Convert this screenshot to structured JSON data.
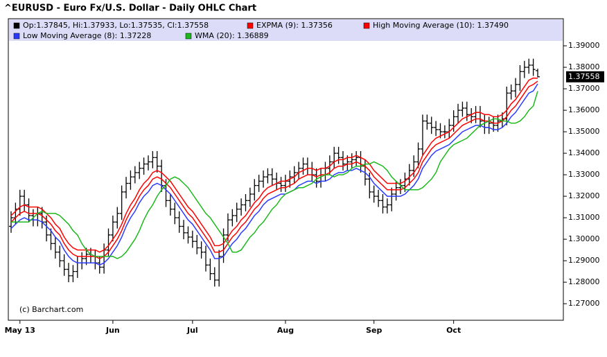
{
  "chart_data": {
    "type": "ohlc",
    "title": "^EURUSD - Euro Fx/U.S. Dollar - Daily OHLC Chart",
    "source": "(c) Barchart.com",
    "categories": [
      null,
      null,
      "May 13",
      null,
      null,
      null,
      null,
      null,
      null,
      null,
      null,
      null,
      null,
      null,
      null,
      null,
      null,
      null,
      null,
      null,
      null,
      null,
      null,
      "Jun",
      null,
      null,
      null,
      null,
      null,
      null,
      null,
      null,
      null,
      null,
      null,
      null,
      null,
      null,
      null,
      null,
      null,
      "Jul",
      null,
      null,
      null,
      null,
      null,
      null,
      null,
      null,
      null,
      null,
      null,
      null,
      null,
      null,
      null,
      null,
      null,
      null,
      null,
      null,
      "Aug",
      null,
      null,
      null,
      null,
      null,
      null,
      null,
      null,
      null,
      null,
      null,
      null,
      null,
      null,
      null,
      null,
      null,
      null,
      null,
      "Sep",
      null,
      null,
      null,
      null,
      null,
      null,
      null,
      null,
      null,
      null,
      null,
      null,
      null,
      null,
      null,
      null,
      null,
      "Oct",
      null,
      null,
      null,
      null,
      null,
      null,
      null,
      null,
      null,
      null,
      null,
      null,
      null,
      null,
      null,
      null,
      null,
      null,
      null
    ],
    "ohlc": {
      "name": "Op:1.37845, Hi:1.37933, Lo:1.37535, Cl:1.37558",
      "color": "#000000",
      "open": [
        1.306,
        1.31,
        1.314,
        1.32,
        1.316,
        1.311,
        1.309,
        1.312,
        1.308,
        1.302,
        1.298,
        1.294,
        1.29,
        1.286,
        1.283,
        1.285,
        1.289,
        1.291,
        1.293,
        1.292,
        1.289,
        1.287,
        1.295,
        1.302,
        1.308,
        1.312,
        1.322,
        1.326,
        1.329,
        1.331,
        1.333,
        1.335,
        1.336,
        1.338,
        1.334,
        1.325,
        1.318,
        1.314,
        1.31,
        1.306,
        1.303,
        1.301,
        1.299,
        1.296,
        1.294,
        1.288,
        1.284,
        1.281,
        1.292,
        1.302,
        1.309,
        1.311,
        1.314,
        1.316,
        1.318,
        1.321,
        1.325,
        1.327,
        1.329,
        1.33,
        1.328,
        1.326,
        1.325,
        1.327,
        1.329,
        1.331,
        1.333,
        1.335,
        1.333,
        1.33,
        1.327,
        1.33,
        1.333,
        1.336,
        1.34,
        1.338,
        1.335,
        1.336,
        1.337,
        1.338,
        1.334,
        1.328,
        1.322,
        1.32,
        1.318,
        1.315,
        1.316,
        1.321,
        1.324,
        1.325,
        1.328,
        1.332,
        1.336,
        1.342,
        1.355,
        1.354,
        1.352,
        1.351,
        1.35,
        1.35,
        1.353,
        1.357,
        1.36,
        1.361,
        1.358,
        1.357,
        1.359,
        1.355,
        1.352,
        1.354,
        1.353,
        1.355,
        1.356,
        1.368,
        1.369,
        1.372,
        1.378,
        1.38,
        1.381,
        1.37845
      ],
      "high": [
        1.313,
        1.317,
        1.323,
        1.323,
        1.319,
        1.314,
        1.315,
        1.315,
        1.311,
        1.305,
        1.301,
        1.297,
        1.293,
        1.289,
        1.288,
        1.292,
        1.294,
        1.296,
        1.296,
        1.295,
        1.292,
        1.298,
        1.305,
        1.311,
        1.315,
        1.325,
        1.329,
        1.332,
        1.334,
        1.336,
        1.338,
        1.339,
        1.341,
        1.341,
        1.337,
        1.328,
        1.321,
        1.317,
        1.313,
        1.309,
        1.306,
        1.304,
        1.302,
        1.299,
        1.297,
        1.291,
        1.287,
        1.295,
        1.305,
        1.312,
        1.314,
        1.317,
        1.319,
        1.321,
        1.324,
        1.328,
        1.33,
        1.332,
        1.333,
        1.333,
        1.331,
        1.329,
        1.33,
        1.332,
        1.334,
        1.336,
        1.338,
        1.338,
        1.336,
        1.333,
        1.333,
        1.336,
        1.339,
        1.343,
        1.343,
        1.341,
        1.339,
        1.34,
        1.341,
        1.341,
        1.337,
        1.331,
        1.325,
        1.323,
        1.321,
        1.319,
        1.324,
        1.327,
        1.328,
        1.331,
        1.335,
        1.339,
        1.345,
        1.358,
        1.358,
        1.357,
        1.355,
        1.354,
        1.353,
        1.356,
        1.36,
        1.363,
        1.364,
        1.364,
        1.361,
        1.362,
        1.362,
        1.358,
        1.357,
        1.357,
        1.358,
        1.359,
        1.371,
        1.372,
        1.375,
        1.381,
        1.383,
        1.384,
        1.384,
        1.37933
      ],
      "low": [
        1.303,
        1.307,
        1.311,
        1.313,
        1.308,
        1.306,
        1.306,
        1.305,
        1.299,
        1.295,
        1.291,
        1.287,
        1.283,
        1.28,
        1.28,
        1.282,
        1.286,
        1.288,
        1.289,
        1.286,
        1.284,
        1.284,
        1.292,
        1.299,
        1.305,
        1.309,
        1.319,
        1.323,
        1.326,
        1.328,
        1.33,
        1.332,
        1.333,
        1.331,
        1.322,
        1.315,
        1.311,
        1.307,
        1.303,
        1.3,
        1.298,
        1.296,
        1.293,
        1.291,
        1.285,
        1.281,
        1.278,
        1.278,
        1.289,
        1.299,
        1.306,
        1.308,
        1.311,
        1.313,
        1.315,
        1.318,
        1.322,
        1.324,
        1.326,
        1.325,
        1.323,
        1.322,
        1.322,
        1.324,
        1.326,
        1.328,
        1.33,
        1.33,
        1.327,
        1.324,
        1.324,
        1.327,
        1.33,
        1.333,
        1.335,
        1.332,
        1.332,
        1.333,
        1.334,
        1.331,
        1.325,
        1.319,
        1.317,
        1.315,
        1.312,
        1.312,
        1.313,
        1.318,
        1.321,
        1.322,
        1.325,
        1.329,
        1.333,
        1.339,
        1.351,
        1.349,
        1.348,
        1.347,
        1.347,
        1.347,
        1.35,
        1.354,
        1.357,
        1.355,
        1.354,
        1.354,
        1.352,
        1.349,
        1.349,
        1.35,
        1.35,
        1.352,
        1.353,
        1.365,
        1.366,
        1.369,
        1.375,
        1.377,
        1.376,
        1.37535
      ],
      "close": [
        1.31,
        1.314,
        1.32,
        1.316,
        1.311,
        1.309,
        1.312,
        1.308,
        1.302,
        1.298,
        1.294,
        1.29,
        1.286,
        1.283,
        1.285,
        1.289,
        1.291,
        1.293,
        1.292,
        1.289,
        1.287,
        1.295,
        1.302,
        1.308,
        1.312,
        1.322,
        1.326,
        1.329,
        1.331,
        1.333,
        1.335,
        1.336,
        1.338,
        1.334,
        1.325,
        1.318,
        1.314,
        1.31,
        1.306,
        1.303,
        1.301,
        1.299,
        1.296,
        1.294,
        1.288,
        1.284,
        1.281,
        1.292,
        1.302,
        1.309,
        1.311,
        1.314,
        1.316,
        1.318,
        1.321,
        1.325,
        1.327,
        1.329,
        1.33,
        1.328,
        1.326,
        1.325,
        1.327,
        1.329,
        1.331,
        1.333,
        1.335,
        1.333,
        1.33,
        1.327,
        1.33,
        1.333,
        1.336,
        1.34,
        1.338,
        1.335,
        1.336,
        1.337,
        1.338,
        1.334,
        1.328,
        1.322,
        1.32,
        1.318,
        1.315,
        1.316,
        1.321,
        1.324,
        1.325,
        1.328,
        1.332,
        1.336,
        1.342,
        1.355,
        1.354,
        1.352,
        1.351,
        1.35,
        1.35,
        1.353,
        1.357,
        1.36,
        1.361,
        1.358,
        1.357,
        1.359,
        1.355,
        1.352,
        1.354,
        1.353,
        1.355,
        1.356,
        1.368,
        1.369,
        1.372,
        1.378,
        1.38,
        1.381,
        1.379,
        1.37558
      ]
    },
    "series": [
      {
        "name": "EXPMA (9): 1.37356",
        "color": "#ff0000",
        "values": [
          1.308,
          1.31,
          1.312,
          1.313,
          1.312,
          1.312,
          1.312,
          1.311,
          1.309,
          1.307,
          1.304,
          1.302,
          1.298,
          1.295,
          1.293,
          1.292,
          1.292,
          1.292,
          1.292,
          1.292,
          1.291,
          1.292,
          1.294,
          1.297,
          1.3,
          1.304,
          1.309,
          1.313,
          1.316,
          1.32,
          1.323,
          1.325,
          1.328,
          1.329,
          1.328,
          1.326,
          1.324,
          1.321,
          1.318,
          1.315,
          1.312,
          1.31,
          1.307,
          1.304,
          1.301,
          1.298,
          1.294,
          1.294,
          1.295,
          1.298,
          1.301,
          1.303,
          1.306,
          1.308,
          1.311,
          1.314,
          1.316,
          1.319,
          1.321,
          1.322,
          1.323,
          1.324,
          1.324,
          1.325,
          1.326,
          1.328,
          1.329,
          1.33,
          1.33,
          1.329,
          1.33,
          1.33,
          1.331,
          1.333,
          1.334,
          1.334,
          1.335,
          1.335,
          1.336,
          1.335,
          1.334,
          1.332,
          1.329,
          1.327,
          1.325,
          1.323,
          1.323,
          1.323,
          1.323,
          1.324,
          1.326,
          1.328,
          1.331,
          1.336,
          1.339,
          1.342,
          1.344,
          1.345,
          1.346,
          1.347,
          1.349,
          1.351,
          1.353,
          1.354,
          1.355,
          1.356,
          1.356,
          1.355,
          1.355,
          1.354,
          1.354,
          1.355,
          1.357,
          1.36,
          1.362,
          1.365,
          1.368,
          1.371,
          1.372,
          1.37356
        ]
      },
      {
        "name": "High Moving Average (10): 1.37490",
        "color": "#ff0000",
        "values": [
          1.311,
          1.313,
          1.315,
          1.316,
          1.315,
          1.315,
          1.315,
          1.314,
          1.312,
          1.31,
          1.307,
          1.305,
          1.301,
          1.298,
          1.296,
          1.295,
          1.295,
          1.295,
          1.295,
          1.295,
          1.294,
          1.295,
          1.297,
          1.3,
          1.303,
          1.307,
          1.312,
          1.316,
          1.319,
          1.323,
          1.326,
          1.328,
          1.331,
          1.332,
          1.331,
          1.329,
          1.327,
          1.324,
          1.321,
          1.318,
          1.315,
          1.313,
          1.31,
          1.307,
          1.304,
          1.301,
          1.297,
          1.297,
          1.298,
          1.301,
          1.304,
          1.306,
          1.309,
          1.311,
          1.314,
          1.317,
          1.319,
          1.322,
          1.324,
          1.325,
          1.326,
          1.327,
          1.327,
          1.328,
          1.329,
          1.331,
          1.332,
          1.333,
          1.333,
          1.332,
          1.333,
          1.333,
          1.334,
          1.336,
          1.337,
          1.337,
          1.338,
          1.338,
          1.339,
          1.338,
          1.337,
          1.335,
          1.332,
          1.33,
          1.328,
          1.326,
          1.326,
          1.326,
          1.326,
          1.327,
          1.329,
          1.331,
          1.334,
          1.339,
          1.342,
          1.345,
          1.347,
          1.348,
          1.349,
          1.35,
          1.352,
          1.354,
          1.356,
          1.357,
          1.358,
          1.359,
          1.359,
          1.358,
          1.358,
          1.357,
          1.357,
          1.358,
          1.36,
          1.363,
          1.365,
          1.368,
          1.371,
          1.374,
          1.375,
          1.3749
        ]
      },
      {
        "name": "Low Moving Average (8): 1.37228",
        "color": "#2a3bff",
        "values": [
          1.305,
          1.307,
          1.309,
          1.31,
          1.309,
          1.309,
          1.309,
          1.308,
          1.306,
          1.304,
          1.301,
          1.299,
          1.295,
          1.292,
          1.29,
          1.289,
          1.289,
          1.289,
          1.289,
          1.289,
          1.288,
          1.289,
          1.291,
          1.294,
          1.297,
          1.301,
          1.306,
          1.31,
          1.313,
          1.317,
          1.32,
          1.322,
          1.325,
          1.326,
          1.325,
          1.323,
          1.321,
          1.318,
          1.315,
          1.312,
          1.309,
          1.307,
          1.304,
          1.301,
          1.298,
          1.295,
          1.291,
          1.291,
          1.292,
          1.295,
          1.298,
          1.3,
          1.303,
          1.305,
          1.308,
          1.311,
          1.313,
          1.316,
          1.318,
          1.319,
          1.32,
          1.321,
          1.321,
          1.322,
          1.323,
          1.325,
          1.326,
          1.327,
          1.327,
          1.326,
          1.327,
          1.327,
          1.328,
          1.33,
          1.331,
          1.331,
          1.332,
          1.332,
          1.333,
          1.332,
          1.331,
          1.329,
          1.326,
          1.324,
          1.322,
          1.32,
          1.32,
          1.32,
          1.32,
          1.321,
          1.323,
          1.325,
          1.328,
          1.333,
          1.336,
          1.339,
          1.341,
          1.342,
          1.343,
          1.344,
          1.346,
          1.348,
          1.35,
          1.351,
          1.352,
          1.353,
          1.353,
          1.352,
          1.352,
          1.351,
          1.351,
          1.352,
          1.354,
          1.357,
          1.359,
          1.362,
          1.365,
          1.368,
          1.369,
          1.37228
        ]
      },
      {
        "name": "WMA (20): 1.36889",
        "color": "#1db81d",
        "values": [
          1.308,
          1.308,
          1.308,
          1.308,
          1.308,
          1.31,
          1.312,
          1.313,
          1.312,
          1.312,
          1.312,
          1.311,
          1.309,
          1.307,
          1.304,
          1.302,
          1.298,
          1.295,
          1.293,
          1.292,
          1.292,
          1.292,
          1.292,
          1.292,
          1.291,
          1.292,
          1.294,
          1.297,
          1.3,
          1.304,
          1.309,
          1.313,
          1.316,
          1.32,
          1.323,
          1.325,
          1.328,
          1.329,
          1.328,
          1.326,
          1.324,
          1.321,
          1.318,
          1.315,
          1.312,
          1.31,
          1.307,
          1.304,
          1.301,
          1.298,
          1.294,
          1.294,
          1.295,
          1.298,
          1.301,
          1.303,
          1.306,
          1.308,
          1.311,
          1.314,
          1.316,
          1.319,
          1.321,
          1.322,
          1.323,
          1.324,
          1.324,
          1.325,
          1.326,
          1.328,
          1.329,
          1.33,
          1.33,
          1.329,
          1.33,
          1.33,
          1.331,
          1.333,
          1.334,
          1.334,
          1.335,
          1.335,
          1.336,
          1.335,
          1.334,
          1.332,
          1.329,
          1.327,
          1.325,
          1.323,
          1.323,
          1.323,
          1.323,
          1.324,
          1.326,
          1.328,
          1.331,
          1.336,
          1.339,
          1.342,
          1.344,
          1.345,
          1.346,
          1.347,
          1.349,
          1.351,
          1.353,
          1.354,
          1.355,
          1.356,
          1.356,
          1.355,
          1.355,
          1.354,
          1.354,
          1.355,
          1.357,
          1.36,
          1.362,
          1.36889
        ]
      }
    ],
    "ylim": [
      1.2623,
      1.4026
    ],
    "yticks": [
      {
        "value": 1.27,
        "label": "1.27000"
      },
      {
        "value": 1.28,
        "label": "1.28000"
      },
      {
        "value": 1.29,
        "label": "1.29000"
      },
      {
        "value": 1.3,
        "label": "1.30000"
      },
      {
        "value": 1.31,
        "label": "1.31000"
      },
      {
        "value": 1.32,
        "label": "1.32000"
      },
      {
        "value": 1.33,
        "label": "1.33000"
      },
      {
        "value": 1.34,
        "label": "1.34000"
      },
      {
        "value": 1.35,
        "label": "1.35000"
      },
      {
        "value": 1.36,
        "label": "1.36000"
      },
      {
        "value": 1.37,
        "label": "1.37000"
      },
      {
        "value": 1.38,
        "label": "1.38000"
      },
      {
        "value": 1.39,
        "label": "1.39000"
      }
    ],
    "annotations": [
      {
        "text": "1.37558",
        "value": 1.37558
      }
    ],
    "grid": false
  }
}
